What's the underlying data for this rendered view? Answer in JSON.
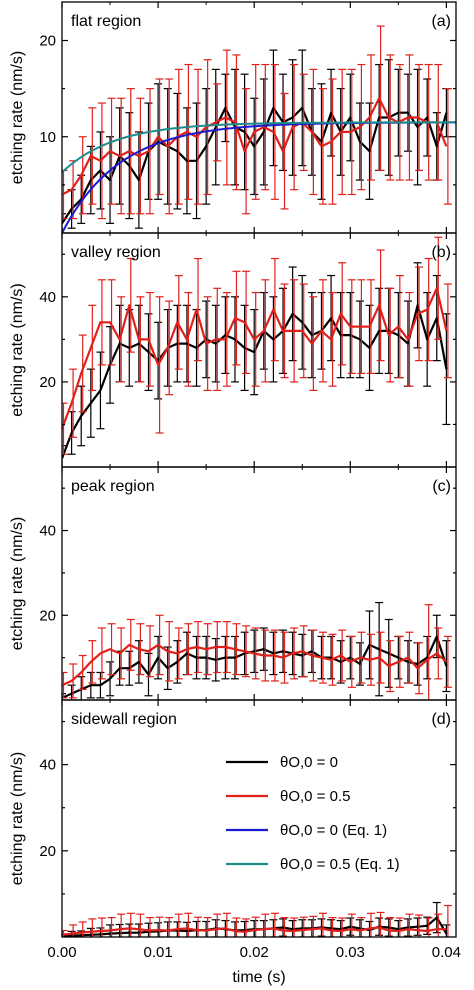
{
  "colors": {
    "black": "#000000",
    "red": "#e0201b",
    "blue": "#1a1ad1",
    "teal": "#1c8c8c"
  },
  "chart_data": [
    {
      "type": "line",
      "panel_label": "(a)",
      "region_title": "flat region",
      "ylabel": "etching rate (nm/s)",
      "xlabel": "",
      "xlim": [
        0,
        0.041
      ],
      "ylim": [
        0,
        24
      ],
      "yticks": [
        "10",
        "20"
      ],
      "xticks": [],
      "x": [
        0,
        0.001,
        0.002,
        0.003,
        0.004,
        0.005,
        0.006,
        0.007,
        0.008,
        0.009,
        0.01,
        0.011,
        0.012,
        0.013,
        0.014,
        0.015,
        0.016,
        0.017,
        0.018,
        0.019,
        0.02,
        0.021,
        0.022,
        0.023,
        0.024,
        0.025,
        0.026,
        0.027,
        0.028,
        0.029,
        0.03,
        0.031,
        0.032,
        0.033,
        0.034,
        0.035,
        0.036,
        0.037,
        0.038,
        0.039,
        0.04
      ],
      "series": [
        {
          "name": "θO,0 = 0",
          "color": "black",
          "values": [
            1.0,
            2.5,
            3.5,
            5.5,
            6.5,
            5.5,
            8.0,
            7.0,
            5.5,
            8.5,
            9.5,
            9.0,
            8.5,
            7.5,
            7.5,
            9.0,
            11.0,
            13.0,
            11.0,
            10.5,
            9.0,
            10.5,
            13.0,
            11.5,
            12.0,
            13.0,
            10.5,
            9.5,
            12.5,
            10.5,
            12.0,
            9.5,
            8.5,
            12.0,
            12.0,
            12.5,
            12.5,
            11.0,
            12.0,
            9.0,
            12.5
          ],
          "err": [
            1.0,
            2.0,
            2.5,
            3.5,
            4.0,
            4.5,
            5.0,
            5.5,
            5.0,
            5.0,
            6.0,
            6.0,
            6.0,
            5.5,
            6.0,
            6.0,
            6.0,
            3.5,
            6.0,
            6.0,
            5.0,
            5.5,
            6.0,
            5.0,
            6.0,
            6.0,
            4.5,
            6.0,
            4.5,
            4.5,
            4.5,
            4.0,
            5.0,
            5.5,
            6.0,
            4.5,
            4.0,
            6.0,
            4.0,
            3.5,
            2.5
          ]
        },
        {
          "name": "θO,0 = 0.5",
          "color": "red",
          "values": [
            4.0,
            4.5,
            6.0,
            8.0,
            7.5,
            8.5,
            8.0,
            8.5,
            8.0,
            8.5,
            10.0,
            9.0,
            10.0,
            10.5,
            10.0,
            11.0,
            11.5,
            12.0,
            11.5,
            8.5,
            10.5,
            11.0,
            10.5,
            8.5,
            11.0,
            11.5,
            10.5,
            9.0,
            9.5,
            10.5,
            10.5,
            11.0,
            12.0,
            14.0,
            12.0,
            11.5,
            12.0,
            12.0,
            11.5,
            11.5,
            9.0
          ],
          "err": [
            2.5,
            3.0,
            4.0,
            5.0,
            6.0,
            5.5,
            6.0,
            6.5,
            6.0,
            6.5,
            6.0,
            7.0,
            7.0,
            7.0,
            7.0,
            7.0,
            4.0,
            7.0,
            7.0,
            6.5,
            7.0,
            6.5,
            7.0,
            6.0,
            6.5,
            5.0,
            6.5,
            6.0,
            6.5,
            6.5,
            6.5,
            6.5,
            6.5,
            7.5,
            6.5,
            6.0,
            6.5,
            5.5,
            6.0,
            6.0,
            6.0
          ]
        },
        {
          "name": "θO,0 = 0 (Eq. 1)",
          "color": "blue",
          "model": {
            "a": 11.5,
            "b": 0,
            "tau": 0.006
          }
        },
        {
          "name": "θO,0 = 0.5 (Eq. 1)",
          "color": "teal",
          "model": {
            "a": 11.5,
            "b": 6.3,
            "tau": 0.0055
          }
        }
      ]
    },
    {
      "type": "line",
      "panel_label": "(b)",
      "region_title": "valley region",
      "ylabel": "etching rate (nm/s)",
      "xlabel": "",
      "xlim": [
        0,
        0.041
      ],
      "ylim": [
        0,
        55
      ],
      "yticks": [
        "20",
        "40"
      ],
      "xticks": [],
      "x": [
        0,
        0.001,
        0.002,
        0.003,
        0.004,
        0.005,
        0.006,
        0.007,
        0.008,
        0.009,
        0.01,
        0.011,
        0.012,
        0.013,
        0.014,
        0.015,
        0.016,
        0.017,
        0.018,
        0.019,
        0.02,
        0.021,
        0.022,
        0.023,
        0.024,
        0.025,
        0.026,
        0.027,
        0.028,
        0.029,
        0.03,
        0.031,
        0.032,
        0.033,
        0.034,
        0.035,
        0.036,
        0.037,
        0.038,
        0.039,
        0.04
      ],
      "series": [
        {
          "name": "θO,0 = 0",
          "color": "black",
          "values": [
            2,
            8,
            12,
            15,
            18,
            24,
            29,
            28,
            29,
            27,
            25,
            28,
            29,
            29,
            28,
            30,
            29,
            31,
            30,
            28,
            27,
            32,
            30,
            32,
            36,
            34,
            31,
            32,
            35,
            31,
            31,
            30,
            28,
            32,
            32,
            31,
            29,
            38,
            30,
            35,
            23
          ],
          "err": [
            3,
            5,
            7,
            8,
            9,
            9,
            9,
            9,
            9,
            9,
            9,
            9,
            9,
            9,
            9,
            9,
            9,
            9,
            10,
            10,
            10,
            9,
            10,
            10,
            11,
            11,
            10,
            9,
            10,
            10,
            10,
            9,
            10,
            10,
            10,
            10,
            10,
            10,
            11,
            10,
            13
          ]
        },
        {
          "name": "θO,0 = 0.5",
          "color": "red",
          "values": [
            9,
            15,
            22,
            28,
            34,
            34,
            30,
            38,
            30,
            30,
            24,
            28,
            34,
            30,
            37,
            29,
            30,
            30,
            35,
            34,
            30,
            32,
            37,
            32,
            32,
            32,
            29,
            32,
            30,
            36,
            33,
            33,
            33,
            38,
            31,
            33,
            30,
            36,
            37,
            42,
            32
          ],
          "err": [
            6,
            8,
            9,
            10,
            10,
            10,
            10,
            11,
            10,
            11,
            16,
            11,
            11,
            11,
            12,
            11,
            12,
            11,
            11,
            12,
            11,
            12,
            12,
            11,
            12,
            11,
            11,
            12,
            11,
            12,
            11,
            11,
            11,
            13,
            11,
            12,
            11,
            11,
            12,
            12,
            11
          ]
        }
      ]
    },
    {
      "type": "line",
      "panel_label": "(c)",
      "region_title": "peak region",
      "ylabel": "etching rate (nm/s)",
      "xlabel": "",
      "xlim": [
        0,
        0.041
      ],
      "ylim": [
        0,
        55
      ],
      "yticks": [
        "20",
        "40"
      ],
      "xticks": [],
      "x": [
        0,
        0.001,
        0.002,
        0.003,
        0.004,
        0.005,
        0.006,
        0.007,
        0.008,
        0.009,
        0.01,
        0.011,
        0.012,
        0.013,
        0.014,
        0.015,
        0.016,
        0.017,
        0.018,
        0.019,
        0.02,
        0.021,
        0.022,
        0.023,
        0.024,
        0.025,
        0.026,
        0.027,
        0.028,
        0.029,
        0.03,
        0.031,
        0.032,
        0.033,
        0.034,
        0.035,
        0.036,
        0.037,
        0.038,
        0.039,
        0.04
      ],
      "series": [
        {
          "name": "θO,0 = 0",
          "color": "black",
          "values": [
            0.5,
            1.5,
            2.5,
            3.5,
            3.5,
            5,
            7.5,
            7.5,
            9,
            6,
            10,
            7.5,
            9,
            11,
            10,
            10,
            9.5,
            10,
            10,
            11,
            11.5,
            12,
            11,
            11.5,
            11,
            10.5,
            11.5,
            10,
            10,
            9,
            10,
            8.5,
            13,
            12,
            11,
            10,
            9,
            8.5,
            10,
            15,
            8
          ],
          "err": [
            1,
            2,
            3,
            3,
            3,
            4,
            4,
            4,
            5,
            5,
            5,
            5,
            5,
            5,
            5,
            5,
            5,
            5,
            5,
            5,
            5,
            5,
            5,
            5,
            5,
            5,
            5,
            5,
            5,
            5,
            5,
            5,
            8,
            11,
            8,
            5,
            5,
            5,
            5,
            5,
            6
          ]
        },
        {
          "name": "θO,0 = 0.5",
          "color": "red",
          "values": [
            3.5,
            4.5,
            6.5,
            9,
            11,
            12,
            11,
            13,
            12,
            11.5,
            13,
            11.5,
            11,
            12,
            12.5,
            12,
            12.5,
            12.5,
            12,
            11.5,
            11,
            10.5,
            10.5,
            10,
            11,
            11.5,
            10.5,
            10,
            9.5,
            10.5,
            9,
            10,
            9.5,
            10,
            8,
            9,
            10,
            7.5,
            9.5,
            11,
            9
          ],
          "err": [
            3,
            4,
            4,
            5,
            6,
            6,
            6,
            6,
            6,
            6,
            7,
            7,
            6,
            6,
            6,
            6,
            6,
            6,
            6,
            6,
            6,
            6,
            6,
            6,
            6,
            6,
            6,
            6,
            6,
            6,
            6,
            6,
            6,
            6,
            6,
            6,
            6,
            6,
            13,
            6,
            6
          ]
        }
      ]
    },
    {
      "type": "line",
      "panel_label": "(d)",
      "region_title": "sidewall region",
      "ylabel": "etching rate (nm/s)",
      "xlabel": "time (s)",
      "xlim": [
        0,
        0.041
      ],
      "ylim": [
        0,
        55
      ],
      "yticks": [
        "20",
        "40"
      ],
      "xticks": [
        "0.00",
        "0.01",
        "0.02",
        "0.03",
        "0.04"
      ],
      "x": [
        0,
        0.001,
        0.002,
        0.003,
        0.004,
        0.005,
        0.006,
        0.007,
        0.008,
        0.009,
        0.01,
        0.011,
        0.012,
        0.013,
        0.014,
        0.015,
        0.016,
        0.017,
        0.018,
        0.019,
        0.02,
        0.021,
        0.022,
        0.023,
        0.024,
        0.025,
        0.026,
        0.027,
        0.028,
        0.029,
        0.03,
        0.031,
        0.032,
        0.033,
        0.034,
        0.035,
        0.036,
        0.037,
        0.038,
        0.039,
        0.04
      ],
      "series": [
        {
          "name": "θO,0 = 0",
          "color": "black",
          "values": [
            0.2,
            0.3,
            0.4,
            0.5,
            0.6,
            0.8,
            0.9,
            1,
            1,
            1.2,
            1.3,
            1.5,
            1.5,
            1.4,
            1.6,
            1.6,
            2,
            1.8,
            1.5,
            1.6,
            1.8,
            1.8,
            2,
            2.2,
            1.8,
            2,
            2,
            2.2,
            2,
            1.8,
            2.4,
            2,
            1.6,
            2.4,
            2.2,
            1.8,
            2.2,
            2.4,
            2.6,
            4.5,
            0.8
          ],
          "err": [
            0.5,
            1,
            1,
            1.5,
            1.5,
            2,
            2,
            2,
            2,
            2,
            2,
            2,
            2,
            2,
            2,
            2,
            2,
            2,
            2,
            2,
            2,
            2,
            2,
            2,
            2,
            2,
            2,
            2,
            2,
            2,
            2,
            2,
            2,
            2,
            2,
            2,
            2,
            2,
            2,
            3.5,
            2
          ]
        },
        {
          "name": "θO,0 = 0.5",
          "color": "red",
          "values": [
            0.5,
            0.8,
            1,
            1.2,
            1.4,
            1.5,
            1.8,
            2,
            1.8,
            1.5,
            1.6,
            1.5,
            1.8,
            2,
            1.6,
            1.5,
            1.8,
            2,
            1.4,
            1.2,
            1.6,
            1.8,
            2,
            1.5,
            1.4,
            1.6,
            1.8,
            2,
            1.5,
            1.4,
            1.8,
            1.5,
            2,
            2.2,
            1.5,
            1.4,
            1.8,
            1.6,
            1.4,
            1.8,
            1.8
          ],
          "err": [
            1,
            2,
            2.5,
            3,
            3,
            3,
            3.5,
            3.5,
            3.5,
            3,
            3,
            3,
            3.5,
            3.5,
            3,
            3,
            3.5,
            3.5,
            3,
            3,
            3,
            3.5,
            3.5,
            3,
            3,
            3,
            3,
            3.5,
            3,
            3,
            3.5,
            3,
            3.5,
            3.5,
            3,
            3,
            3.5,
            3.5,
            3,
            3.5,
            5.5
          ]
        }
      ]
    }
  ]
}
